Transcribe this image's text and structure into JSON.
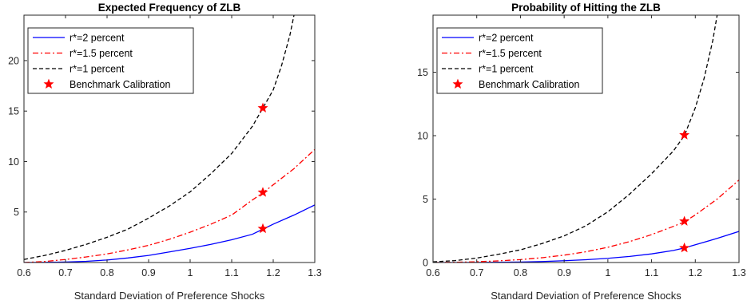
{
  "chart_data": [
    {
      "type": "line",
      "title": "Expected Frequency of ZLB",
      "xlabel": "Standard Deviation of Preference Shocks",
      "ylabel": "",
      "xlim": [
        0.6,
        1.3
      ],
      "ylim": [
        0,
        24.5
      ],
      "xticks": [
        0.6,
        0.7,
        0.8,
        0.9,
        1,
        1.1,
        1.2,
        1.3
      ],
      "xtick_labels": [
        "0.6",
        "0.7",
        "0.8",
        "0.9",
        "1",
        "1.1",
        "1.2",
        "1.3"
      ],
      "yticks": [
        5,
        10,
        15,
        20
      ],
      "ytick_labels": [
        "5",
        "10",
        "15",
        "20"
      ],
      "grid": false,
      "legend": "top-left",
      "series": [
        {
          "name": "r*=2 percent",
          "color": "#0000ff",
          "style": "solid",
          "x": [
            0.6,
            0.65,
            0.7,
            0.75,
            0.8,
            0.85,
            0.9,
            0.95,
            1.0,
            1.05,
            1.1,
            1.15,
            1.175,
            1.2,
            1.25,
            1.3
          ],
          "y": [
            0.0,
            0.02,
            0.05,
            0.12,
            0.25,
            0.45,
            0.7,
            1.05,
            1.4,
            1.8,
            2.25,
            2.8,
            3.3,
            3.8,
            4.7,
            5.7
          ]
        },
        {
          "name": "r*=1.5 percent",
          "color": "#ff0000",
          "style": "dashdot",
          "x": [
            0.6,
            0.65,
            0.7,
            0.75,
            0.8,
            0.85,
            0.9,
            0.95,
            1.0,
            1.05,
            1.1,
            1.15,
            1.175,
            1.2,
            1.25,
            1.3
          ],
          "y": [
            0.0,
            0.1,
            0.3,
            0.55,
            0.85,
            1.25,
            1.7,
            2.3,
            3.0,
            3.8,
            4.7,
            6.2,
            6.9,
            7.7,
            9.3,
            11.2
          ]
        },
        {
          "name": "r*=1 percent",
          "color": "#000000",
          "style": "dashed",
          "x": [
            0.6,
            0.65,
            0.7,
            0.75,
            0.8,
            0.85,
            0.9,
            0.95,
            1.0,
            1.05,
            1.1,
            1.15,
            1.175,
            1.2,
            1.22,
            1.24,
            1.25
          ],
          "y": [
            0.3,
            0.7,
            1.2,
            1.8,
            2.5,
            3.3,
            4.4,
            5.6,
            7.0,
            8.8,
            10.8,
            13.5,
            15.3,
            17.1,
            19.5,
            22.5,
            24.5
          ]
        },
        {
          "name": "Benchmark Calibration",
          "color": "#ff0000",
          "marker": "star",
          "x": [
            1.175,
            1.175,
            1.175
          ],
          "y": [
            3.35,
            6.95,
            15.3
          ]
        }
      ]
    },
    {
      "type": "line",
      "title": "Probability of Hitting the ZLB",
      "xlabel": "Standard Deviation of Preference Shocks",
      "ylabel": "",
      "xlim": [
        0.6,
        1.3
      ],
      "ylim": [
        0,
        19.5
      ],
      "xticks": [
        0.6,
        0.7,
        0.8,
        0.9,
        1,
        1.1,
        1.2,
        1.3
      ],
      "xtick_labels": [
        "0.6",
        "0.7",
        "0.8",
        "0.9",
        "1",
        "1.1",
        "1.2",
        "1.3"
      ],
      "yticks": [
        0,
        5,
        10,
        15
      ],
      "ytick_labels": [
        "0",
        "5",
        "10",
        "15"
      ],
      "grid": false,
      "legend": "top-left",
      "series": [
        {
          "name": "r*=2 percent",
          "color": "#0000ff",
          "style": "solid",
          "x": [
            0.6,
            0.65,
            0.7,
            0.75,
            0.8,
            0.85,
            0.9,
            0.95,
            1.0,
            1.05,
            1.1,
            1.15,
            1.175,
            1.2,
            1.25,
            1.3
          ],
          "y": [
            0.0,
            0.0,
            0.01,
            0.02,
            0.04,
            0.08,
            0.14,
            0.22,
            0.33,
            0.48,
            0.68,
            0.95,
            1.15,
            1.4,
            1.9,
            2.45
          ]
        },
        {
          "name": "r*=1.5 percent",
          "color": "#ff0000",
          "style": "dashdot",
          "x": [
            0.6,
            0.65,
            0.7,
            0.75,
            0.8,
            0.85,
            0.9,
            0.95,
            1.0,
            1.05,
            1.1,
            1.15,
            1.175,
            1.2,
            1.25,
            1.3
          ],
          "y": [
            0.0,
            0.02,
            0.06,
            0.13,
            0.23,
            0.38,
            0.58,
            0.85,
            1.2,
            1.65,
            2.2,
            2.85,
            3.2,
            3.75,
            5.0,
            6.5
          ]
        },
        {
          "name": "r*=1 percent",
          "color": "#000000",
          "style": "dashed",
          "x": [
            0.6,
            0.65,
            0.7,
            0.75,
            0.8,
            0.85,
            0.9,
            0.95,
            1.0,
            1.05,
            1.1,
            1.15,
            1.175,
            1.2,
            1.22,
            1.24,
            1.25
          ],
          "y": [
            0.05,
            0.15,
            0.35,
            0.65,
            1.0,
            1.5,
            2.1,
            2.9,
            4.0,
            5.4,
            7.0,
            8.8,
            10.0,
            12.2,
            14.5,
            17.5,
            19.5
          ]
        },
        {
          "name": "Benchmark Calibration",
          "color": "#ff0000",
          "marker": "star",
          "x": [
            1.175,
            1.175,
            1.175
          ],
          "y": [
            1.15,
            3.25,
            10.05
          ]
        }
      ]
    }
  ]
}
